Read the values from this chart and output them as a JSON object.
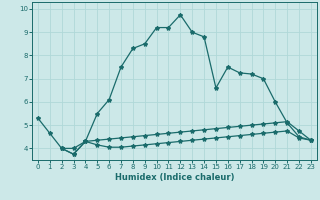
{
  "title": "",
  "xlabel": "Humidex (Indice chaleur)",
  "bg_color": "#cce8e8",
  "grid_color": "#b0d8d8",
  "line_color": "#1a6b6b",
  "xlim": [
    -0.5,
    23.5
  ],
  "ylim": [
    3.5,
    10.3
  ],
  "xticks": [
    0,
    1,
    2,
    3,
    4,
    5,
    6,
    7,
    8,
    9,
    10,
    11,
    12,
    13,
    14,
    15,
    16,
    17,
    18,
    19,
    20,
    21,
    22,
    23
  ],
  "yticks": [
    4,
    5,
    6,
    7,
    8,
    9,
    10
  ],
  "line1_x": [
    0,
    1,
    2,
    3,
    4,
    5,
    6,
    7,
    8,
    9,
    10,
    11,
    12,
    13,
    14,
    15,
    16,
    17,
    18,
    19,
    20,
    21,
    22,
    23
  ],
  "line1_y": [
    5.3,
    4.65,
    4.0,
    4.0,
    4.3,
    5.5,
    6.1,
    7.5,
    8.3,
    8.5,
    9.2,
    9.2,
    9.75,
    9.0,
    8.8,
    6.6,
    7.5,
    7.25,
    7.2,
    7.0,
    6.0,
    5.1,
    4.5,
    4.35
  ],
  "line2_x": [
    2,
    3,
    4,
    5,
    6,
    7,
    8,
    9,
    10,
    11,
    12,
    13,
    14,
    15,
    16,
    17,
    18,
    19,
    20,
    21,
    22,
    23
  ],
  "line2_y": [
    4.0,
    3.75,
    4.3,
    4.35,
    4.4,
    4.45,
    4.5,
    4.55,
    4.6,
    4.65,
    4.7,
    4.75,
    4.8,
    4.85,
    4.9,
    4.95,
    5.0,
    5.05,
    5.1,
    5.15,
    4.75,
    4.35
  ],
  "line3_x": [
    2,
    3,
    4,
    5,
    6,
    7,
    8,
    9,
    10,
    11,
    12,
    13,
    14,
    15,
    16,
    17,
    18,
    19,
    20,
    21,
    22,
    23
  ],
  "line3_y": [
    4.0,
    3.75,
    4.3,
    4.15,
    4.05,
    4.05,
    4.1,
    4.15,
    4.2,
    4.25,
    4.3,
    4.35,
    4.4,
    4.45,
    4.5,
    4.55,
    4.6,
    4.65,
    4.7,
    4.75,
    4.45,
    4.35
  ],
  "marker": "*",
  "markersize": 3,
  "linewidth": 0.9,
  "tick_fontsize": 5,
  "xlabel_fontsize": 6
}
